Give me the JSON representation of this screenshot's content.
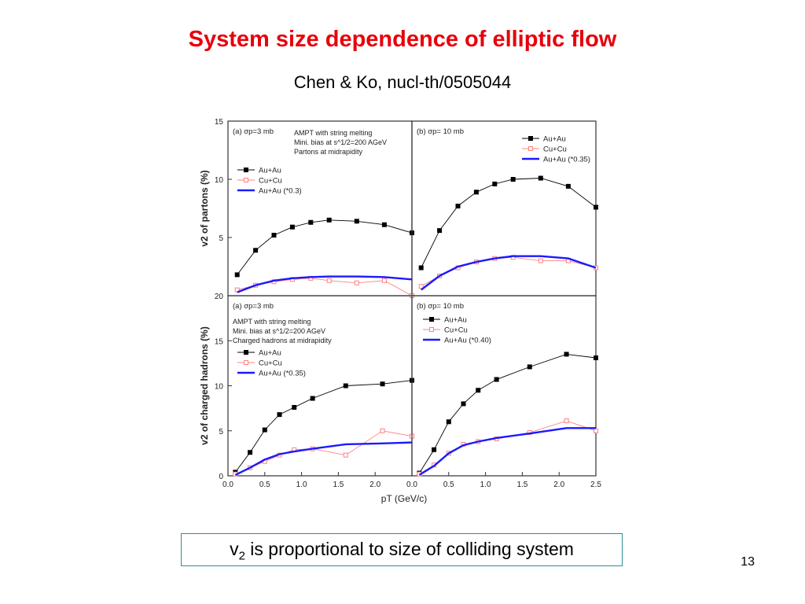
{
  "slide": {
    "title": "System size dependence of elliptic flow",
    "subtitle": "Chen & Ko, nucl-th/0505044",
    "caption_pre": "v",
    "caption_sub": "2",
    "caption_post": " is proportional to size of colliding system",
    "page_number": "13"
  },
  "colors": {
    "title": "#e8000b",
    "auau": "#000000",
    "cucu": "#ff8080",
    "scaled": "#1a1aff",
    "caption_border": "#2e8f8f"
  },
  "chart_data": [
    {
      "type": "line",
      "panel": "top-left",
      "label": "(a) σp=3 mb",
      "notes": [
        "AMPT with string melting",
        "Mini. bias at s^1/2=200 AGeV",
        "Partons at midrapidity"
      ],
      "ylabel": "v2 of partons (%)",
      "ylim": [
        0,
        15
      ],
      "yticks": [
        "5",
        "10",
        "15"
      ],
      "xlim": [
        0,
        1.0
      ],
      "legend_position": "top-left",
      "series": [
        {
          "name": "Au+Au",
          "style": "filled-square",
          "x": [
            0.05,
            0.15,
            0.25,
            0.35,
            0.45,
            0.55,
            0.7,
            0.85,
            1.0
          ],
          "y": [
            1.8,
            3.9,
            5.2,
            5.9,
            6.3,
            6.5,
            6.4,
            6.1,
            5.4
          ]
        },
        {
          "name": "Cu+Cu",
          "style": "open-square",
          "x": [
            0.05,
            0.15,
            0.25,
            0.35,
            0.45,
            0.55,
            0.7,
            0.85,
            1.0
          ],
          "y": [
            0.5,
            0.9,
            1.2,
            1.4,
            1.5,
            1.3,
            1.1,
            1.3,
            0.0
          ]
        },
        {
          "name": "Au+Au (*0.3)",
          "style": "thick-line",
          "x": [
            0.05,
            0.15,
            0.25,
            0.35,
            0.45,
            0.55,
            0.7,
            0.85,
            1.0
          ],
          "y": [
            0.3,
            0.9,
            1.3,
            1.5,
            1.6,
            1.65,
            1.65,
            1.6,
            1.4
          ]
        }
      ]
    },
    {
      "type": "line",
      "panel": "top-right",
      "label": "(b) σp= 10 mb",
      "notes": [],
      "ylim": [
        0,
        15
      ],
      "xlim": [
        0,
        1.0
      ],
      "legend_position": "top-right",
      "series": [
        {
          "name": "Au+Au",
          "style": "filled-square",
          "x": [
            0.05,
            0.15,
            0.25,
            0.35,
            0.45,
            0.55,
            0.7,
            0.85,
            1.0
          ],
          "y": [
            2.4,
            5.6,
            7.7,
            8.9,
            9.6,
            10.0,
            10.1,
            9.4,
            7.6
          ]
        },
        {
          "name": "Cu+Cu",
          "style": "open-square",
          "x": [
            0.05,
            0.15,
            0.25,
            0.35,
            0.45,
            0.55,
            0.7,
            0.85,
            1.0
          ],
          "y": [
            0.8,
            1.7,
            2.4,
            2.9,
            3.2,
            3.3,
            3.0,
            3.0,
            2.4
          ]
        },
        {
          "name": "Au+Au (*0.35)",
          "style": "thick-line",
          "x": [
            0.05,
            0.15,
            0.25,
            0.35,
            0.45,
            0.55,
            0.7,
            0.85,
            1.0
          ],
          "y": [
            0.5,
            1.7,
            2.5,
            2.9,
            3.2,
            3.4,
            3.4,
            3.2,
            2.4
          ]
        }
      ]
    },
    {
      "type": "line",
      "panel": "bottom-left",
      "label": "(a) σp=3 mb",
      "notes": [
        "AMPT with string melting",
        "Mini. bias at s^1/2=200 AGeV",
        "Charged hadrons at midrapidity"
      ],
      "ylabel": "v2 of charged hadrons (%)",
      "ylim": [
        0,
        20
      ],
      "yticks": [
        "0",
        "5",
        "10",
        "15",
        "20"
      ],
      "xlim": [
        0,
        2.5
      ],
      "xticks": [
        "0.0",
        "0.5",
        "1.0",
        "1.5",
        "2.0"
      ],
      "legend_position": "middle-left",
      "series": [
        {
          "name": "Au+Au",
          "style": "filled-square",
          "x": [
            0.1,
            0.3,
            0.5,
            0.7,
            0.9,
            1.15,
            1.6,
            2.1,
            2.5
          ],
          "y": [
            0.4,
            2.6,
            5.1,
            6.8,
            7.6,
            8.6,
            10.0,
            10.2,
            10.6
          ]
        },
        {
          "name": "Cu+Cu",
          "style": "open-square",
          "x": [
            0.1,
            0.3,
            0.5,
            0.7,
            0.9,
            1.15,
            1.6,
            2.1,
            2.5
          ],
          "y": [
            0.2,
            0.9,
            1.6,
            2.3,
            2.9,
            3.0,
            2.3,
            5.0,
            4.4
          ]
        },
        {
          "name": "Au+Au (*0.35)",
          "style": "thick-line",
          "x": [
            0.1,
            0.3,
            0.5,
            0.7,
            0.9,
            1.15,
            1.6,
            2.1,
            2.5
          ],
          "y": [
            0.1,
            0.9,
            1.8,
            2.4,
            2.7,
            3.0,
            3.5,
            3.6,
            3.7
          ]
        }
      ]
    },
    {
      "type": "line",
      "panel": "bottom-right",
      "label": "(b) σp= 10 mb",
      "notes": [],
      "xlabel": "pT (GeV/c)",
      "ylim": [
        0,
        20
      ],
      "xlim": [
        0,
        2.5
      ],
      "xticks": [
        "0.0",
        "0.5",
        "1.0",
        "1.5",
        "2.0",
        "2.5"
      ],
      "legend_position": "top-left",
      "series": [
        {
          "name": "Au+Au",
          "style": "filled-square",
          "x": [
            0.1,
            0.3,
            0.5,
            0.7,
            0.9,
            1.15,
            1.6,
            2.1,
            2.5
          ],
          "y": [
            0.3,
            2.9,
            6.0,
            8.0,
            9.5,
            10.7,
            12.1,
            13.5,
            13.1
          ]
        },
        {
          "name": "Cu+Cu",
          "style": "open-square",
          "x": [
            0.1,
            0.3,
            0.5,
            0.7,
            0.9,
            1.15,
            1.6,
            2.1,
            2.5
          ],
          "y": [
            0.2,
            1.2,
            2.5,
            3.5,
            3.8,
            4.1,
            4.8,
            6.1,
            5.0
          ]
        },
        {
          "name": "Au+Au (*0.40)",
          "style": "thick-line",
          "x": [
            0.1,
            0.3,
            0.5,
            0.7,
            0.9,
            1.15,
            1.6,
            2.1,
            2.5
          ],
          "y": [
            0.1,
            1.1,
            2.5,
            3.4,
            3.8,
            4.2,
            4.7,
            5.3,
            5.3
          ]
        }
      ]
    }
  ]
}
